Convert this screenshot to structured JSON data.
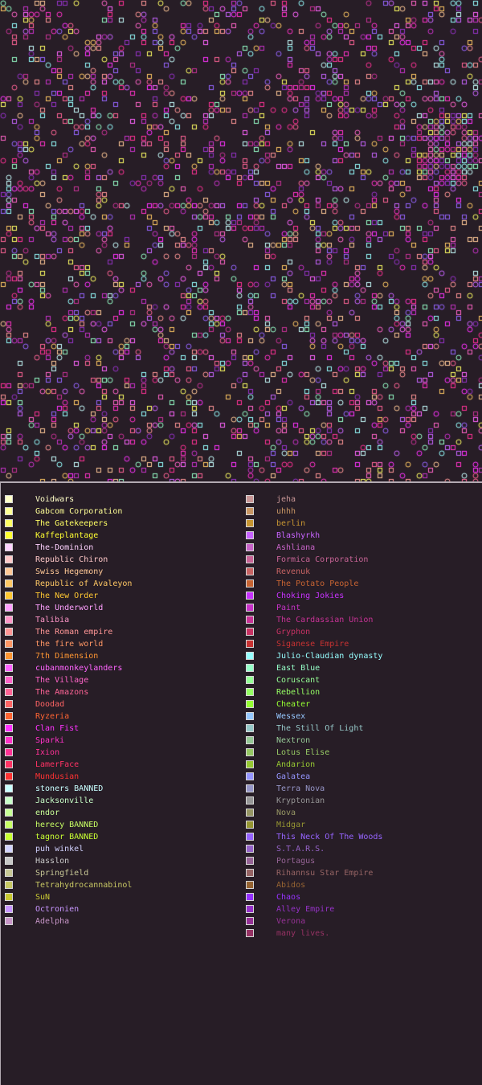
{
  "map": {
    "background": "#271d26"
  },
  "legend": {
    "left_column": [
      {
        "name": "Voidwars",
        "color": "#ffffc8"
      },
      {
        "name": "Gabcom Corporation",
        "color": "#ffff96"
      },
      {
        "name": "The Gatekeepers",
        "color": "#ffff64"
      },
      {
        "name": "Kaffeplantage",
        "color": "#ffff32"
      },
      {
        "name": "The-Dominion",
        "color": "#ffd2ff"
      },
      {
        "name": "Republic Chiron",
        "color": "#ffc8c8"
      },
      {
        "name": "Swiss Hegemony",
        "color": "#ffc896"
      },
      {
        "name": "Republic of Avaleyon",
        "color": "#ffc864"
      },
      {
        "name": "The New Order",
        "color": "#ffc832"
      },
      {
        "name": "The Underworld",
        "color": "#ffa0ff"
      },
      {
        "name": "Talibia",
        "color": "#ff96c8"
      },
      {
        "name": "The Roman empire",
        "color": "#ff9696"
      },
      {
        "name": "the fire world",
        "color": "#ff9664"
      },
      {
        "name": "7th Dimension",
        "color": "#ff9632"
      },
      {
        "name": "cubanmonkeylanders",
        "color": "#ff64ff"
      },
      {
        "name": "The Village",
        "color": "#ff64c8"
      },
      {
        "name": "The Amazons",
        "color": "#ff6496"
      },
      {
        "name": "Doodad",
        "color": "#ff6464"
      },
      {
        "name": "Ryzeria",
        "color": "#ff6432"
      },
      {
        "name": "Clan Fist",
        "color": "#ff32ff"
      },
      {
        "name": "Sparki",
        "color": "#ff32c8"
      },
      {
        "name": "Ixion",
        "color": "#ff3296"
      },
      {
        "name": "LamerFace",
        "color": "#ff3264"
      },
      {
        "name": "Mundusian",
        "color": "#ff3232"
      },
      {
        "name": "stoners BANNED",
        "color": "#c8ffff"
      },
      {
        "name": "Jacksonville",
        "color": "#c8ffc8"
      },
      {
        "name": "endor",
        "color": "#c8ff96"
      },
      {
        "name": "herecy BANNED",
        "color": "#c8ff64"
      },
      {
        "name": "tagnor BANNED",
        "color": "#c8ff32"
      },
      {
        "name": "puh winkel",
        "color": "#d2d2ff"
      },
      {
        "name": "Hasslon",
        "color": "#c8c8c8"
      },
      {
        "name": "Springfield",
        "color": "#c8c896"
      },
      {
        "name": "Tetrahydrocannabinol",
        "color": "#c8c864"
      },
      {
        "name": "SuN",
        "color": "#c8c832"
      },
      {
        "name": "Octronien",
        "color": "#c896ff"
      },
      {
        "name": "Adelpha",
        "color": "#c896c8"
      }
    ],
    "right_column": [
      {
        "name": "jeha",
        "color": "#c89696"
      },
      {
        "name": "uhhh",
        "color": "#c89664"
      },
      {
        "name": "berlin",
        "color": "#c89632"
      },
      {
        "name": "Blashyrkh",
        "color": "#c864ff"
      },
      {
        "name": "Ashliana",
        "color": "#c864c8"
      },
      {
        "name": "Formica Corporation",
        "color": "#c86496"
      },
      {
        "name": "Revenuk",
        "color": "#c86464"
      },
      {
        "name": "The Potato People",
        "color": "#c86432"
      },
      {
        "name": "Choking Jokies",
        "color": "#c832ff"
      },
      {
        "name": "Paint",
        "color": "#c832c8"
      },
      {
        "name": "The Cardassian Union",
        "color": "#c83296"
      },
      {
        "name": "Gryphon",
        "color": "#c83264"
      },
      {
        "name": "Siganese Empire",
        "color": "#c83232"
      },
      {
        "name": "Julio-Claudian dynasty",
        "color": "#96ffff"
      },
      {
        "name": "East Blue",
        "color": "#96ffc8"
      },
      {
        "name": "Coruscant",
        "color": "#96ff96"
      },
      {
        "name": "Rebellion",
        "color": "#96ff64"
      },
      {
        "name": "Cheater",
        "color": "#96ff32"
      },
      {
        "name": "Wessex",
        "color": "#96c8ff"
      },
      {
        "name": "The Still Of Light",
        "color": "#96c8c8"
      },
      {
        "name": "Nextron",
        "color": "#96c896"
      },
      {
        "name": "Lotus Elise",
        "color": "#96c864"
      },
      {
        "name": "Andarion",
        "color": "#96c832"
      },
      {
        "name": "Galatea",
        "color": "#9696ff"
      },
      {
        "name": "Terra Nova",
        "color": "#9696c8"
      },
      {
        "name": "Kryptonian",
        "color": "#969696"
      },
      {
        "name": "Nova",
        "color": "#969664"
      },
      {
        "name": "Midgar",
        "color": "#969632"
      },
      {
        "name": "This Neck Of The Woods",
        "color": "#9664ff"
      },
      {
        "name": "S.T.A.R.S.",
        "color": "#9664c8"
      },
      {
        "name": "Portagus",
        "color": "#966496"
      },
      {
        "name": "Rihannsu Star Empire",
        "color": "#966464"
      },
      {
        "name": "Abidos",
        "color": "#966432"
      },
      {
        "name": "Chaos",
        "color": "#9632ff"
      },
      {
        "name": "Alley Empire",
        "color": "#9632c8"
      },
      {
        "name": "Verona",
        "color": "#963296"
      },
      {
        "name": "many lives.",
        "color": "#963264"
      }
    ]
  }
}
